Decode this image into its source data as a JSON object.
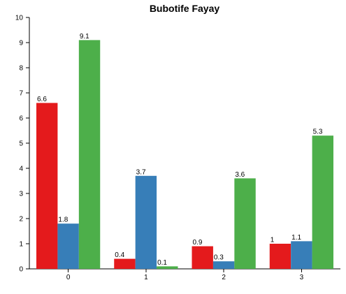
{
  "chart_data": {
    "type": "bar",
    "title": "Bubotife Fayay",
    "categories": [
      "0",
      "1",
      "2",
      "3"
    ],
    "series": [
      {
        "color": "#e41a1c",
        "values": [
          6.6,
          0.4,
          0.9,
          1
        ]
      },
      {
        "color": "#377eb8",
        "values": [
          1.8,
          3.7,
          0.3,
          1.1
        ]
      },
      {
        "color": "#4daf4a",
        "values": [
          9.1,
          0.1,
          3.6,
          5.3
        ]
      }
    ],
    "ylim": [
      0,
      10
    ],
    "yticks": [
      0,
      1,
      2,
      3,
      4,
      5,
      6,
      7,
      8,
      9,
      10
    ],
    "grid": false,
    "data_labels": true
  }
}
